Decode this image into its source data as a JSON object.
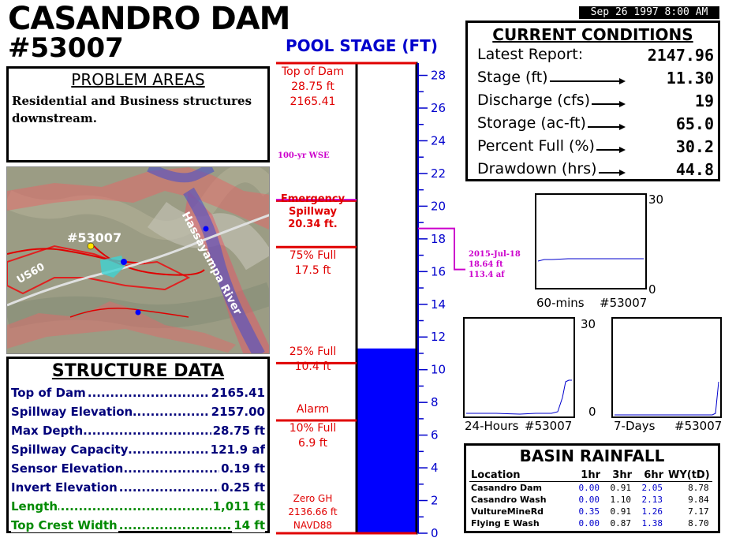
{
  "header": {
    "title_line1": "CASANDRO DAM",
    "title_line2": "#53007",
    "timestamp": "Sep 26 1997  8:00 AM"
  },
  "problem_areas": {
    "heading": "PROBLEM AREAS",
    "text": "Residential and Business structures downstream."
  },
  "map": {
    "gauge_label": "#53007",
    "road_label": "US60",
    "river_label": "Hassayampa River"
  },
  "structure_data": {
    "heading": "STRUCTURE DATA",
    "rows": [
      {
        "label": "Top of Dam",
        "value": "2165.41",
        "color": "#00007a"
      },
      {
        "label": "Spillway Elevation",
        "value": "2157.00",
        "color": "#00007a"
      },
      {
        "label": "Max Depth",
        "value": "28.75 ft",
        "color": "#00007a"
      },
      {
        "label": "Spillway Capacity",
        "value": "121.9 af",
        "color": "#00007a"
      },
      {
        "label": "Sensor Elevation",
        "value": "0.19 ft",
        "color": "#00007a"
      },
      {
        "label": "Invert Elevation",
        "value": "0.25 ft",
        "color": "#00007a"
      },
      {
        "label": "Length",
        "value": "1,011 ft",
        "color": "#008a00"
      },
      {
        "label": "Top Crest Width",
        "value": "14 ft",
        "color": "#008a00"
      }
    ]
  },
  "pool_stage": {
    "title": "POOL STAGE (FT)",
    "current_stage": 11.3,
    "scale_max": 28.75,
    "ticks": [
      "0",
      "2",
      "4",
      "6",
      "8",
      "10",
      "12",
      "14",
      "16",
      "18",
      "20",
      "22",
      "24",
      "26",
      "28"
    ],
    "levels": {
      "top_of_dam": {
        "line1": "Top of Dam",
        "line2": "28.75 ft",
        "line3": "2165.41"
      },
      "wse_100yr": {
        "line1": "100-yr WSE"
      },
      "emergency": {
        "line1": "Emergency",
        "line2": "Spillway",
        "line3": "20.34 ft."
      },
      "full75": {
        "line1": "75% Full",
        "line2": "17.5 ft"
      },
      "full25": {
        "line1": "25% Full",
        "line2": "10.4 ft"
      },
      "alarm": {
        "line1": "Alarm"
      },
      "full10": {
        "line1": "10% Full",
        "line2": "6.9 ft"
      },
      "zero": {
        "line1": "Zero GH",
        "line2": "2136.66 ft",
        "line3": "NAVD88"
      }
    },
    "record": {
      "date": "2015-Jul-18",
      "stage": "18.64 ft",
      "volume": "113.4 af"
    },
    "colors": {
      "water": "#0000ff",
      "lines": "#e00000",
      "axis": "#0000cc",
      "record": "#cc00cc"
    }
  },
  "current_conditions": {
    "heading": "CURRENT CONDITIONS",
    "rows": [
      {
        "label": "Latest Report:",
        "value": "2147.96",
        "arrow": false
      },
      {
        "label": "Stage (ft)",
        "value": "11.30",
        "arrow": true
      },
      {
        "label": "Discharge (cfs)",
        "value": "19",
        "arrow": true
      },
      {
        "label": "Storage (ac-ft)",
        "value": "65.0",
        "arrow": true
      },
      {
        "label": "Percent Full (%)",
        "value": "30.2",
        "arrow": true
      },
      {
        "label": "Drawdown (hrs)",
        "value": "44.8",
        "arrow": true
      }
    ]
  },
  "mini_charts": {
    "chart_60": {
      "label_left": "60-mins",
      "label_right": "#53007",
      "ymax": "30",
      "ymin": "0"
    },
    "chart_24h": {
      "label_left": "24-Hours",
      "label_right": "#53007",
      "ymax": "30",
      "ymin": "0"
    },
    "chart_7d": {
      "label_left": "7-Days",
      "label_right": "#53007"
    }
  },
  "basin_rainfall": {
    "heading": "BASIN RAINFALL",
    "columns": [
      "Location",
      "1hr",
      "3hr",
      "6hr",
      "WY(tD)"
    ],
    "rows": [
      {
        "location": "Casandro Dam",
        "h1": "0.00",
        "h3": "0.91",
        "h6": "2.05",
        "wy": "8.78"
      },
      {
        "location": "Casandro Wash",
        "h1": "0.00",
        "h3": "1.10",
        "h6": "2.13",
        "wy": "9.84"
      },
      {
        "location": "VultureMineRd",
        "h1": "0.35",
        "h3": "0.91",
        "h6": "1.26",
        "wy": "7.17"
      },
      {
        "location": "Flying E Wash",
        "h1": "0.00",
        "h3": "0.87",
        "h6": "1.38",
        "wy": "8.70"
      }
    ]
  }
}
